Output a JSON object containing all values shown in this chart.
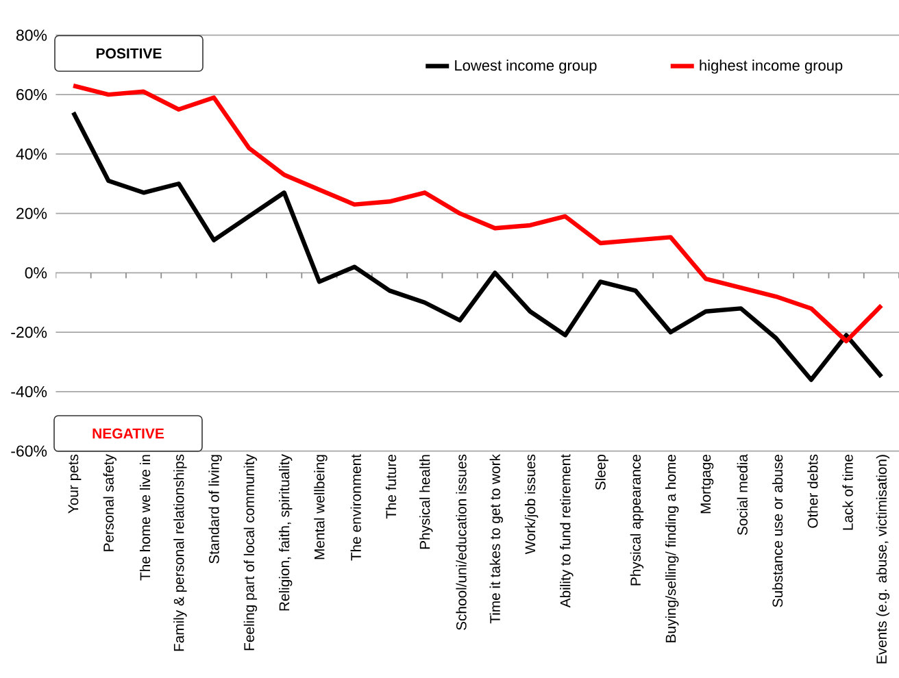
{
  "chart_data": {
    "type": "line",
    "categories": [
      "Your pets",
      "Personal safety",
      "The home we live in",
      "Family & personal relationships",
      "Standard of living",
      "Feeling part of local community",
      "Religion, faith, spirituality",
      "Mental wellbeing",
      "The environment",
      "The future",
      "Physical health",
      "School/uni/education issues",
      "Time it takes to get to work",
      "Work/job issues",
      "Ability to fund retirement",
      "Sleep",
      "Physical appearance",
      "Buying/selling/ finding a home",
      "Mortgage",
      "Social media",
      "Substance use or abuse",
      "Other debts",
      "Lack of time",
      "Events (e.g. abuse, victimisation)"
    ],
    "series": [
      {
        "name": "Lowest income group",
        "color": "#000000",
        "values": [
          54,
          31,
          27,
          30,
          11,
          19,
          27,
          -3,
          2,
          -6,
          -10,
          -16,
          0,
          -13,
          -21,
          -3,
          -6,
          -20,
          -13,
          -12,
          -22,
          -36,
          -21,
          -35
        ]
      },
      {
        "name": "highest income group",
        "color": "#ff0000",
        "values": [
          63,
          60,
          61,
          55,
          59,
          42,
          33,
          28,
          23,
          24,
          27,
          20,
          15,
          16,
          19,
          10,
          11,
          12,
          -2,
          -5,
          -8,
          -12,
          -23,
          -11
        ]
      }
    ],
    "ylim": [
      -60,
      80
    ],
    "yticks": [
      {
        "value": -60,
        "label": "-60%"
      },
      {
        "value": -40,
        "label": "-40%"
      },
      {
        "value": -20,
        "label": "-20%"
      },
      {
        "value": 0,
        "label": "0%"
      },
      {
        "value": 20,
        "label": "20%"
      },
      {
        "value": 40,
        "label": "40%"
      },
      {
        "value": 60,
        "label": "60%"
      },
      {
        "value": 80,
        "label": "80%"
      }
    ],
    "grid": "y",
    "legend": "top right",
    "annotations": [
      "POSITIVE",
      "NEGATIVE"
    ]
  }
}
